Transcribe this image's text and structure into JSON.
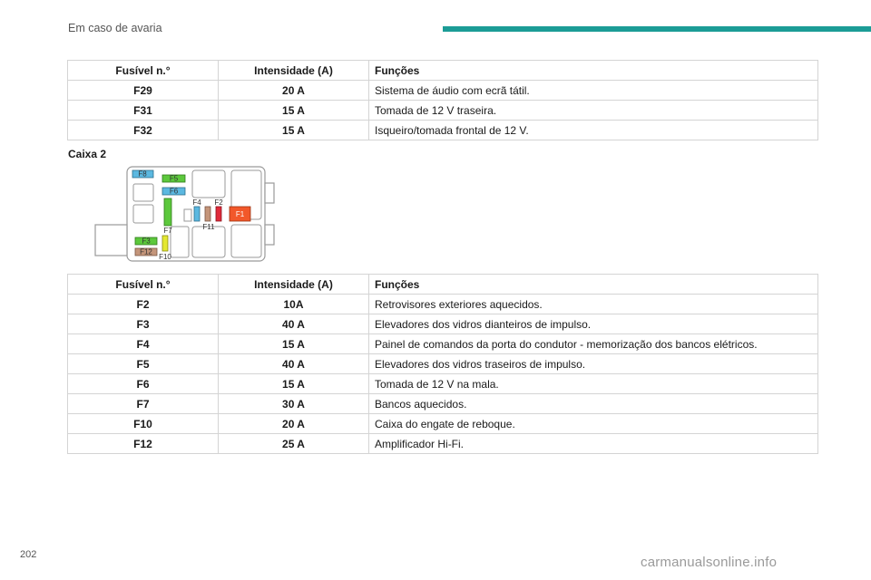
{
  "header": {
    "section_title": "Em caso de avaria"
  },
  "table1": {
    "headers": [
      "Fusível n.°",
      "Intensidade (A)",
      "Funções"
    ],
    "rows": [
      [
        "F29",
        "20 A",
        "Sistema de áudio com ecrã tátil."
      ],
      [
        "F31",
        "15 A",
        "Tomada de 12 V traseira."
      ],
      [
        "F32",
        "15 A",
        "Isqueiro/tomada frontal de 12 V."
      ]
    ]
  },
  "caption": "Caixa 2",
  "diagram": {
    "labels": {
      "f1": "F1",
      "f2": "F2",
      "f3": "F3",
      "f4": "F4",
      "f5": "F5",
      "f6": "F6",
      "f7": "F7",
      "f8": "F8",
      "f10": "F10",
      "f11": "F11",
      "f12": "F12"
    },
    "colors": {
      "blue": "#5bb8e0",
      "green": "#5cc83c",
      "red": "#f2582a",
      "tan": "#c4957a",
      "yellow": "#e4e832",
      "crimson": "#e02a3a"
    }
  },
  "table2": {
    "headers": [
      "Fusível n.°",
      "Intensidade (A)",
      "Funções"
    ],
    "rows": [
      [
        "F2",
        "10A",
        "Retrovisores exteriores aquecidos."
      ],
      [
        "F3",
        "40 A",
        "Elevadores dos vidros dianteiros de impulso."
      ],
      [
        "F4",
        "15 A",
        "Painel de comandos da porta do condutor - memorização dos bancos elétricos."
      ],
      [
        "F5",
        "40 A",
        "Elevadores dos vidros traseiros de impulso."
      ],
      [
        "F6",
        "15 A",
        "Tomada de 12 V na mala."
      ],
      [
        "F7",
        "30 A",
        "Bancos aquecidos."
      ],
      [
        "F10",
        "20 A",
        "Caixa do engate de reboque."
      ],
      [
        "F12",
        "25 A",
        "Amplificador Hi-Fi."
      ]
    ]
  },
  "footer": {
    "page_number": "202",
    "watermark": "carmanualsonline.info"
  }
}
